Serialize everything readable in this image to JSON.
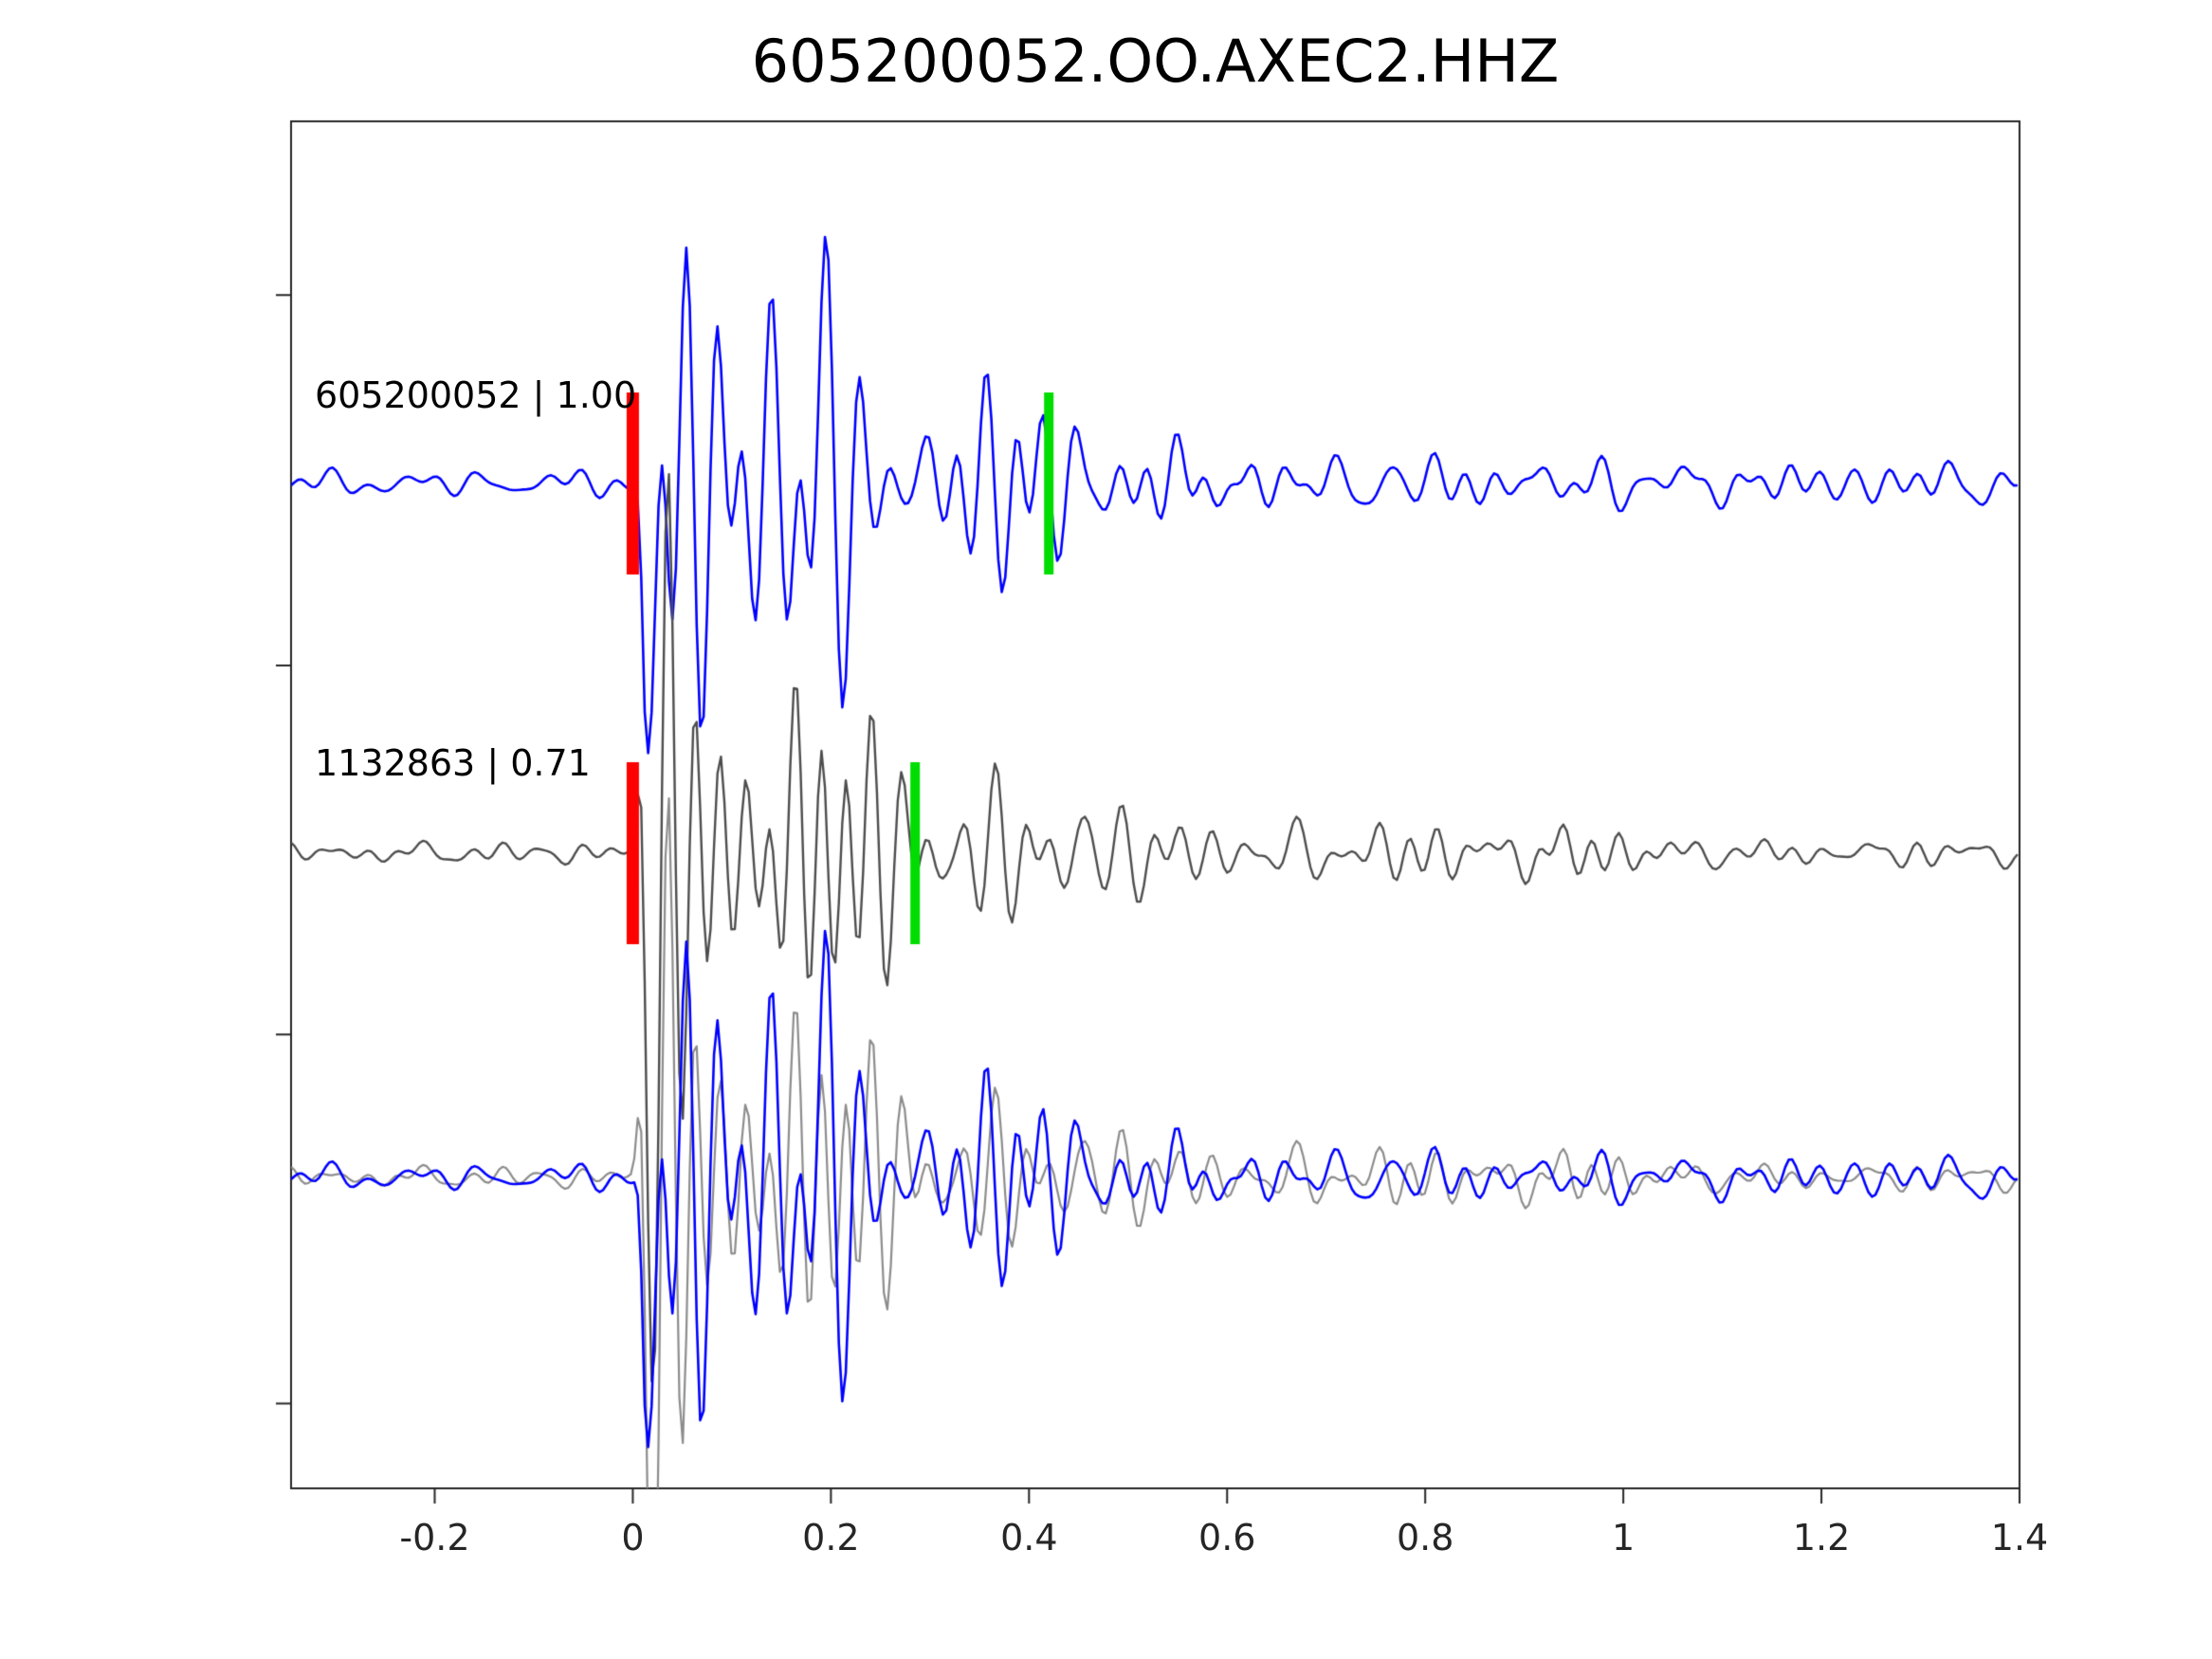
{
  "title": "605200052.OO.AXEC2.HHZ",
  "chart_data": {
    "type": "line",
    "title": "605200052.OO.AXEC2.HHZ",
    "subtitle": "",
    "xlabel": "",
    "ylabel": "",
    "xlim": [
      -0.345,
      1.4
    ],
    "x_ticks": [
      -0.2,
      0,
      0.2,
      0.4,
      0.6,
      0.8,
      1,
      1.2,
      1.4
    ],
    "x_tick_labels": [
      "-0.2",
      "0",
      "0.2",
      "0.4",
      "0.6",
      "0.8",
      "1",
      "1.2",
      "1.4"
    ],
    "grid": false,
    "legend": "none",
    "background": "#ffffff",
    "axis_color": "#262626",
    "pick_colors": {
      "red_pick": "#ff0000",
      "green_pick": "#00dd00"
    },
    "rows": [
      {
        "name": "605200052",
        "label": "605200052 | 1.00",
        "correlation": 1.0,
        "color": "#0000ff",
        "red_pick_x": 0.0,
        "green_pick_x": 0.42,
        "seed": 9
      },
      {
        "name": "1132863",
        "label": "1132863 | 0.71",
        "correlation": 0.71,
        "color": "#4d4d4d",
        "red_pick_x": 0.0,
        "green_pick_x": 0.285,
        "seed": 23
      },
      {
        "name": "overlay",
        "label": "",
        "overlay_of": [
          {
            "row": 1,
            "color": "#8c8c8c"
          },
          {
            "row": 0,
            "color": "#0000ff"
          }
        ]
      }
    ],
    "synthesis": {
      "note": "seismogram waveforms: low-amplitude noise before t=0, sharp onset spike at t=0, strong oscillatory burst from 0 to 0.3 with peaks near t=0.03 and t=0.195, decaying coda out to t=1.4",
      "dt": 0.0035,
      "onset_time": 0.0,
      "burst_window": [
        0.0,
        0.3
      ]
    }
  }
}
